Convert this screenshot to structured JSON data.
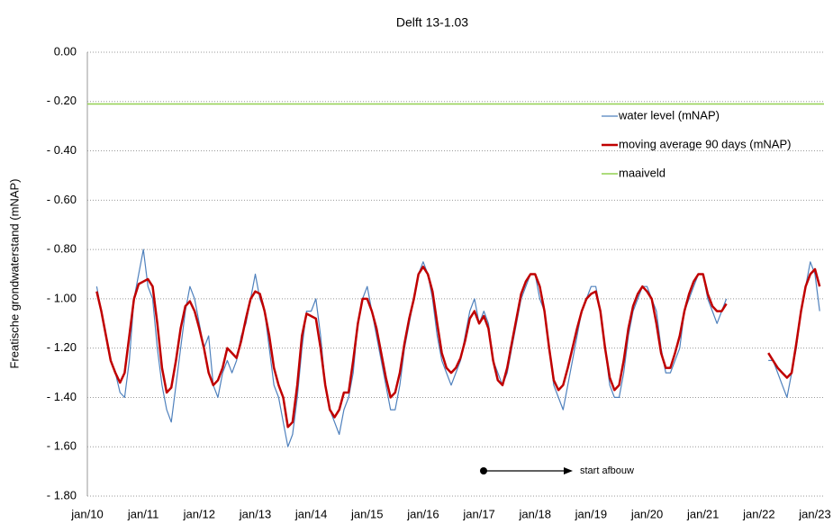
{
  "chart_data": {
    "type": "line",
    "title": "Delft 13-1.03",
    "y_label": "Freatische grondwaterstand (mNAP)",
    "categories": [
      "jan/10",
      null,
      null,
      null,
      null,
      null,
      null,
      null,
      null,
      null,
      null,
      null,
      "jan/11",
      null,
      null,
      null,
      null,
      null,
      null,
      null,
      null,
      null,
      null,
      null,
      "jan/12",
      null,
      null,
      null,
      null,
      null,
      null,
      null,
      null,
      null,
      null,
      null,
      "jan/13",
      null,
      null,
      null,
      null,
      null,
      null,
      null,
      null,
      null,
      null,
      null,
      "jan/14",
      null,
      null,
      null,
      null,
      null,
      null,
      null,
      null,
      null,
      null,
      null,
      "jan/15",
      null,
      null,
      null,
      null,
      null,
      null,
      null,
      null,
      null,
      null,
      null,
      "jan/16",
      null,
      null,
      null,
      null,
      null,
      null,
      null,
      null,
      null,
      null,
      null,
      "jan/17",
      null,
      null,
      null,
      null,
      null,
      null,
      null,
      null,
      null,
      null,
      null,
      "jan/18",
      null,
      null,
      null,
      null,
      null,
      null,
      null,
      null,
      null,
      null,
      null,
      "jan/19",
      null,
      null,
      null,
      null,
      null,
      null,
      null,
      null,
      null,
      null,
      null,
      "jan/20",
      null,
      null,
      null,
      null,
      null,
      null,
      null,
      null,
      null,
      null,
      null,
      "jan/21",
      null,
      null,
      null,
      null,
      null,
      null,
      null,
      null,
      null,
      null,
      null,
      "jan/22",
      null,
      null,
      null,
      null,
      null,
      null,
      null,
      null,
      null,
      null,
      null,
      "jan/23",
      null
    ],
    "series": [
      {
        "name": "water level  (mNAP)",
        "color": "#4f81bd",
        "width": 1.2,
        "values": [
          null,
          null,
          -0.95,
          -1.05,
          -1.15,
          -1.25,
          -1.3,
          -1.38,
          -1.4,
          -1.25,
          -1.0,
          -0.9,
          -0.8,
          -0.95,
          -1.0,
          -1.2,
          -1.35,
          -1.45,
          -1.5,
          -1.35,
          -1.2,
          -1.05,
          -0.95,
          -1.0,
          -1.1,
          -1.2,
          -1.15,
          -1.35,
          -1.4,
          -1.3,
          -1.25,
          -1.3,
          -1.25,
          -1.15,
          -1.1,
          -1.0,
          -0.9,
          -1.0,
          -1.05,
          -1.2,
          -1.35,
          -1.4,
          -1.5,
          -1.6,
          -1.55,
          -1.4,
          -1.2,
          -1.05,
          -1.05,
          -1.0,
          -1.15,
          -1.35,
          -1.45,
          -1.5,
          -1.55,
          -1.45,
          -1.4,
          -1.3,
          -1.1,
          -1.0,
          -0.95,
          -1.05,
          -1.15,
          -1.25,
          -1.35,
          -1.45,
          -1.45,
          -1.35,
          -1.2,
          -1.1,
          -1.0,
          -0.9,
          -0.85,
          -0.9,
          -1.0,
          -1.15,
          -1.25,
          -1.3,
          -1.35,
          -1.3,
          -1.25,
          -1.15,
          -1.05,
          -1.0,
          -1.1,
          -1.05,
          -1.1,
          -1.25,
          -1.3,
          -1.35,
          -1.3,
          -1.2,
          -1.1,
          -1.0,
          -0.95,
          -0.9,
          -0.9,
          -1.0,
          -1.05,
          -1.2,
          -1.35,
          -1.4,
          -1.45,
          -1.35,
          -1.25,
          -1.15,
          -1.05,
          -1.0,
          -0.95,
          -0.95,
          -1.05,
          -1.2,
          -1.35,
          -1.4,
          -1.4,
          -1.3,
          -1.15,
          -1.05,
          -1.0,
          -0.95,
          -0.95,
          -1.0,
          -1.05,
          -1.2,
          -1.3,
          -1.3,
          -1.25,
          -1.2,
          -1.05,
          -1.0,
          -0.95,
          -0.9,
          -0.9,
          -1.0,
          -1.05,
          -1.1,
          -1.05,
          -1.0,
          null,
          null,
          null,
          null,
          null,
          null,
          null,
          null,
          -1.25,
          -1.25,
          -1.3,
          -1.35,
          -1.4,
          -1.3,
          -1.2,
          -1.05,
          -0.95,
          -0.85,
          -0.9,
          -1.05
        ]
      },
      {
        "name": "moving average 90 days (mNAP)",
        "color": "#c00000",
        "width": 2.5,
        "values": [
          null,
          null,
          -0.97,
          -1.05,
          -1.15,
          -1.25,
          -1.3,
          -1.34,
          -1.3,
          -1.15,
          -1.0,
          -0.94,
          -0.93,
          -0.92,
          -0.95,
          -1.1,
          -1.28,
          -1.38,
          -1.36,
          -1.25,
          -1.12,
          -1.03,
          -1.01,
          -1.05,
          -1.12,
          -1.2,
          -1.3,
          -1.35,
          -1.33,
          -1.28,
          -1.2,
          -1.22,
          -1.24,
          -1.17,
          -1.08,
          -1.0,
          -0.97,
          -0.98,
          -1.05,
          -1.15,
          -1.28,
          -1.35,
          -1.4,
          -1.52,
          -1.5,
          -1.35,
          -1.15,
          -1.06,
          -1.07,
          -1.08,
          -1.2,
          -1.35,
          -1.45,
          -1.48,
          -1.45,
          -1.38,
          -1.38,
          -1.25,
          -1.1,
          -1.0,
          -1.0,
          -1.05,
          -1.12,
          -1.22,
          -1.32,
          -1.4,
          -1.38,
          -1.3,
          -1.18,
          -1.08,
          -1.0,
          -0.9,
          -0.87,
          -0.9,
          -0.97,
          -1.1,
          -1.22,
          -1.28,
          -1.3,
          -1.28,
          -1.24,
          -1.17,
          -1.08,
          -1.05,
          -1.1,
          -1.07,
          -1.12,
          -1.25,
          -1.33,
          -1.35,
          -1.28,
          -1.18,
          -1.08,
          -0.98,
          -0.93,
          -0.9,
          -0.9,
          -0.95,
          -1.05,
          -1.2,
          -1.33,
          -1.37,
          -1.35,
          -1.28,
          -1.2,
          -1.12,
          -1.05,
          -1.0,
          -0.98,
          -0.97,
          -1.05,
          -1.2,
          -1.32,
          -1.37,
          -1.35,
          -1.25,
          -1.12,
          -1.03,
          -0.98,
          -0.95,
          -0.97,
          -1.0,
          -1.1,
          -1.22,
          -1.28,
          -1.28,
          -1.22,
          -1.15,
          -1.05,
          -0.98,
          -0.93,
          -0.9,
          -0.9,
          -0.98,
          -1.03,
          -1.05,
          -1.05,
          -1.02,
          null,
          null,
          null,
          null,
          null,
          null,
          null,
          null,
          -1.22,
          -1.25,
          -1.28,
          -1.3,
          -1.32,
          -1.3,
          -1.18,
          -1.05,
          -0.95,
          -0.9,
          -0.88,
          -0.95
        ]
      }
    ],
    "reference_line": {
      "name": "maaiveld",
      "color": "#92d050",
      "value": -0.21
    },
    "annotation": "start afbouw",
    "ylim": [
      -1.8,
      0
    ],
    "yticks": [
      {
        "value": -1.8,
        "label": "- 1.80"
      },
      {
        "value": -1.6,
        "label": "- 1.60"
      },
      {
        "value": -1.4,
        "label": "- 1.40"
      },
      {
        "value": -1.2,
        "label": "- 1.20"
      },
      {
        "value": -1.0,
        "label": "- 1.00"
      },
      {
        "value": -0.8,
        "label": "- 0.80"
      },
      {
        "value": -0.6,
        "label": "- 0.60"
      },
      {
        "value": -0.4,
        "label": "- 0.40"
      },
      {
        "value": -0.2,
        "label": "- 0.20"
      },
      {
        "value": 0,
        "label": "0.00"
      }
    ],
    "grid": true
  }
}
